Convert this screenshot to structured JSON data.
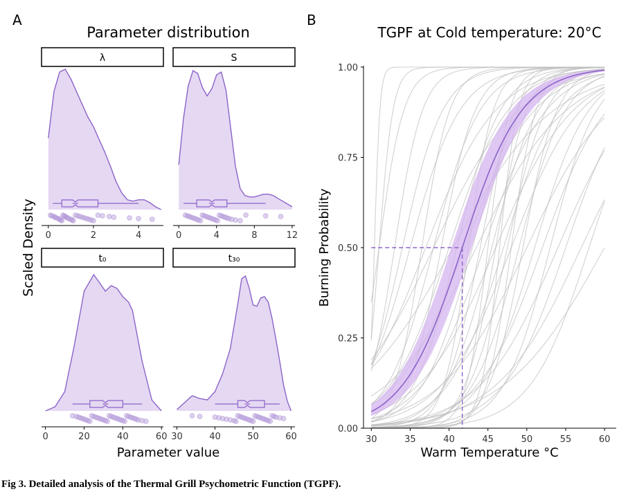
{
  "caption": "Fig 3. Detailed analysis of the Thermal Grill Psychometric Function (TGPF).",
  "colors": {
    "accent": "#8b63c8",
    "fill": "#e5d8f3",
    "band": "#d4b4ef",
    "grey": "#bdbdbd",
    "point": "#b49ad9"
  },
  "chart_data": [
    {
      "type": "density",
      "panel_letter": "A",
      "title": "Parameter distribution",
      "ylabel": "Scaled Density",
      "xlabel": "Parameter value",
      "facets": [
        {
          "label": "λ",
          "xlim": [
            -0.3,
            5.1
          ],
          "ticks": [
            0,
            2,
            4
          ],
          "tick_labels": [
            "0",
            "2",
            "4"
          ],
          "density_x": [
            0,
            0.25,
            0.5,
            0.75,
            1.0,
            1.25,
            1.5,
            1.75,
            2.0,
            2.25,
            2.5,
            2.75,
            3.0,
            3.25,
            3.5,
            3.75,
            4.0,
            4.25,
            4.5,
            4.75,
            5.0
          ],
          "density_y": [
            0.51,
            0.84,
            0.98,
            1.0,
            0.93,
            0.84,
            0.75,
            0.66,
            0.59,
            0.5,
            0.41,
            0.31,
            0.2,
            0.12,
            0.07,
            0.06,
            0.07,
            0.07,
            0.05,
            0.02,
            0.0
          ],
          "box": {
            "whisker_low": 0.2,
            "q1": 0.6,
            "median": 1.2,
            "q3": 2.2,
            "whisker_high": 4.0
          },
          "points": [
            0.1,
            0.15,
            0.25,
            0.3,
            0.35,
            0.45,
            0.5,
            0.55,
            0.6,
            0.65,
            0.7,
            0.75,
            0.8,
            0.85,
            0.9,
            1.0,
            1.05,
            1.1,
            1.2,
            1.3,
            1.4,
            1.5,
            1.6,
            1.7,
            1.8,
            1.9,
            2.0,
            2.2,
            2.4,
            2.7,
            2.9,
            3.6,
            4.0,
            4.6
          ]
        },
        {
          "label": "S",
          "xlim": [
            -0.6,
            12.3
          ],
          "ticks": [
            0,
            4,
            8,
            12
          ],
          "tick_labels": [
            "0",
            "4",
            "8",
            "12"
          ],
          "density_x": [
            0,
            0.5,
            1.0,
            1.5,
            2.0,
            2.5,
            3.0,
            3.5,
            4.0,
            4.5,
            5.0,
            5.5,
            6.0,
            6.5,
            7.0,
            7.5,
            8.0,
            8.5,
            9.0,
            9.5,
            10.0,
            10.5,
            11.0,
            11.5,
            12.0
          ],
          "density_y": [
            0.32,
            0.65,
            0.88,
            0.99,
            0.97,
            0.87,
            0.81,
            0.86,
            0.96,
            0.98,
            0.85,
            0.58,
            0.31,
            0.15,
            0.1,
            0.09,
            0.09,
            0.1,
            0.11,
            0.11,
            0.1,
            0.08,
            0.06,
            0.04,
            0.02
          ],
          "box": {
            "whisker_low": 0.5,
            "q1": 1.9,
            "median": 3.5,
            "q3": 5.1,
            "whisker_high": 9.2
          },
          "points": [
            0.7,
            0.9,
            1.1,
            1.3,
            1.5,
            1.7,
            1.9,
            2.1,
            2.3,
            2.5,
            2.7,
            2.9,
            3.1,
            3.3,
            3.5,
            3.7,
            3.9,
            4.1,
            4.3,
            4.5,
            4.7,
            4.9,
            5.1,
            5.3,
            5.6,
            6.0,
            6.5,
            7.1,
            9.2,
            10.8
          ]
        },
        {
          "label": "t₀",
          "xlim": [
            -2,
            61
          ],
          "ticks": [
            0,
            20,
            40,
            60
          ],
          "tick_labels": [
            "0",
            "20",
            "40",
            "60"
          ],
          "density_x": [
            0,
            5,
            10,
            15,
            20,
            25,
            28,
            31,
            34,
            37,
            40,
            43,
            45,
            50,
            55,
            60
          ],
          "density_y": [
            0.0,
            0.03,
            0.14,
            0.48,
            0.87,
            0.99,
            0.93,
            0.87,
            0.91,
            0.89,
            0.83,
            0.79,
            0.73,
            0.36,
            0.08,
            0.0
          ],
          "box": {
            "whisker_low": 14,
            "q1": 23,
            "median": 31,
            "q3": 40,
            "whisker_high": 50
          },
          "points": [
            14,
            16,
            17,
            18,
            19,
            20,
            21,
            22,
            23,
            24,
            25,
            26,
            27,
            28,
            29,
            30,
            31,
            32,
            33,
            34,
            35,
            36,
            37,
            38,
            39,
            40,
            41,
            42,
            43,
            44,
            45,
            46,
            47,
            48,
            50,
            52
          ]
        },
        {
          "label": "t₃₀",
          "xlim": [
            29,
            61
          ],
          "ticks": [
            30,
            40,
            50,
            60
          ],
          "tick_labels": [
            "30",
            "40",
            "50",
            "60"
          ],
          "density_x": [
            30,
            32,
            34,
            36,
            38,
            40,
            42,
            44,
            46,
            47,
            48,
            49,
            50,
            51,
            52,
            53,
            54,
            55,
            56,
            57,
            58,
            59,
            60
          ],
          "density_y": [
            0.01,
            0.06,
            0.11,
            0.09,
            0.08,
            0.14,
            0.27,
            0.45,
            0.78,
            0.96,
            0.98,
            0.89,
            0.77,
            0.76,
            0.82,
            0.83,
            0.79,
            0.67,
            0.52,
            0.36,
            0.19,
            0.07,
            0.0
          ],
          "box": {
            "whisker_low": 40,
            "q1": 46,
            "median": 48.5,
            "q3": 53,
            "whisker_high": 57
          },
          "points": [
            34,
            36,
            40,
            41,
            42,
            43,
            44,
            45,
            45.5,
            46,
            46.5,
            47,
            47.5,
            48,
            48.5,
            49,
            49.5,
            50,
            50.5,
            51,
            51.5,
            52,
            52.5,
            53,
            53.5,
            54,
            54.5,
            55,
            55.5,
            56,
            57,
            58
          ]
        }
      ]
    },
    {
      "type": "line",
      "panel_letter": "B",
      "title": "TGPF at Cold temperature: 20°C",
      "xlabel": "Warm Temperature °C",
      "ylabel": "Burning Probability",
      "xlim": [
        29,
        61.5
      ],
      "ylim": [
        0,
        1
      ],
      "xticks": [
        30,
        35,
        40,
        45,
        50,
        55,
        60
      ],
      "yticks": [
        0,
        0.25,
        0.5,
        0.75,
        1
      ],
      "ytick_labels": [
        "0.00",
        "0.25",
        "0.50",
        "0.75",
        "1.00"
      ],
      "mean_curve": {
        "t50": 41.7,
        "slope": 3.85
      },
      "band": {
        "upper_t50": 40.3,
        "lower_t50": 42.9,
        "slope": 3.85
      },
      "threshold": {
        "x": 41.7,
        "y": 0.5
      },
      "individual_curves": [
        {
          "t50": 30.4,
          "s": 0.35
        },
        {
          "t50": 31.0,
          "s": 0.9
        },
        {
          "t50": 31.0,
          "s": 1.6
        },
        {
          "t50": 33.0,
          "s": 1.8
        },
        {
          "t50": 34.0,
          "s": 2.6
        },
        {
          "t50": 35.0,
          "s": 3.2
        },
        {
          "t50": 36.5,
          "s": 1.8
        },
        {
          "t50": 37.0,
          "s": 4.5
        },
        {
          "t50": 38.0,
          "s": 3.0
        },
        {
          "t50": 38.0,
          "s": 5.5
        },
        {
          "t50": 39.0,
          "s": 2.2
        },
        {
          "t50": 40.0,
          "s": 3.8
        },
        {
          "t50": 40.5,
          "s": 6.5
        },
        {
          "t50": 41.0,
          "s": 2.8
        },
        {
          "t50": 42.0,
          "s": 4.5
        },
        {
          "t50": 42.5,
          "s": 1.6
        },
        {
          "t50": 43.0,
          "s": 3.2
        },
        {
          "t50": 43.5,
          "s": 5.8
        },
        {
          "t50": 44.0,
          "s": 2.3
        },
        {
          "t50": 44.5,
          "s": 4.0
        },
        {
          "t50": 45.0,
          "s": 1.4
        },
        {
          "t50": 45.5,
          "s": 3.0
        },
        {
          "t50": 46.0,
          "s": 5.0
        },
        {
          "t50": 46.0,
          "s": 2.0
        },
        {
          "t50": 46.5,
          "s": 1.2
        },
        {
          "t50": 47.0,
          "s": 3.6
        },
        {
          "t50": 47.5,
          "s": 2.5
        },
        {
          "t50": 48.0,
          "s": 1.6
        },
        {
          "t50": 48.0,
          "s": 4.5
        },
        {
          "t50": 49.0,
          "s": 3.0
        },
        {
          "t50": 49.5,
          "s": 2.2
        },
        {
          "t50": 50.0,
          "s": 5.5
        },
        {
          "t50": 51.0,
          "s": 3.5
        },
        {
          "t50": 52.0,
          "s": 4.2
        },
        {
          "t50": 53.0,
          "s": 3.0
        },
        {
          "t50": 54.0,
          "s": 5.0
        },
        {
          "t50": 55.0,
          "s": 4.0
        },
        {
          "t50": 57.0,
          "s": 5.5
        },
        {
          "t50": 58.0,
          "s": 3.8
        },
        {
          "t50": 60.0,
          "s": 6.5
        }
      ]
    }
  ]
}
